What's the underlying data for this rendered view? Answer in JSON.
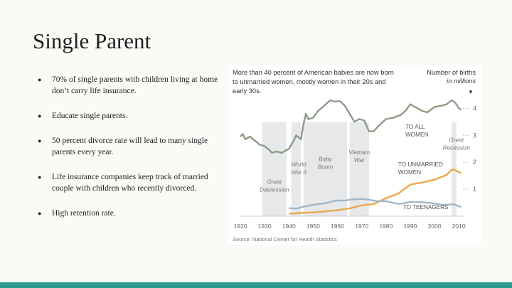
{
  "slide": {
    "title": "Single Parent"
  },
  "bullets": [
    "70% of single parents with children living at home don’t carry life insurance.",
    "Educate single parents.",
    "50 percent divorce rate will lead to many single parents every year.",
    "Life insurance companies keep track of married couple with children who recently divorced.",
    "High retention rate."
  ],
  "chart_data": {
    "type": "line",
    "title_lines": [
      "More than 40 percent of American babies are now born",
      "to unmarried women, mostly women in their 20s and",
      "early 30s."
    ],
    "ylabel_lines": [
      "Number of births",
      "in millions"
    ],
    "y_arrow": "▼",
    "xlim": [
      1920,
      2012
    ],
    "ylim": [
      0,
      4.8
    ],
    "x_ticks": [
      "1920",
      "1930",
      "1940",
      "1950",
      "1960",
      "1970",
      "1980",
      "1990",
      "2000",
      "2010"
    ],
    "y_ticks": [
      "4",
      "3",
      "2",
      "1"
    ],
    "series": [
      {
        "name": "TO ALL WOMEN",
        "label_lines": [
          "TO ALL",
          "WOMEN"
        ],
        "color": "#8e9b86",
        "x": [
          1920,
          1921,
          1922,
          1924,
          1926,
          1928,
          1930,
          1932,
          1933,
          1935,
          1937,
          1939,
          1940,
          1942,
          1943,
          1945,
          1946,
          1947,
          1948,
          1950,
          1952,
          1954,
          1957,
          1959,
          1961,
          1963,
          1965,
          1967,
          1969,
          1971,
          1973,
          1975,
          1977,
          1980,
          1983,
          1986,
          1988,
          1990,
          1992,
          1995,
          1997,
          2000,
          2003,
          2005,
          2007,
          2008,
          2009,
          2010,
          2011
        ],
        "values": [
          2.95,
          3.05,
          2.85,
          2.95,
          2.8,
          2.65,
          2.6,
          2.45,
          2.35,
          2.4,
          2.35,
          2.45,
          2.5,
          2.8,
          3.0,
          2.85,
          3.4,
          3.8,
          3.6,
          3.65,
          3.9,
          4.05,
          4.3,
          4.25,
          4.27,
          4.1,
          3.8,
          3.5,
          3.6,
          3.55,
          3.15,
          3.15,
          3.35,
          3.6,
          3.65,
          3.75,
          3.9,
          4.15,
          4.05,
          3.9,
          3.85,
          4.05,
          4.1,
          4.15,
          4.3,
          4.25,
          4.15,
          4.0,
          3.95
        ]
      },
      {
        "name": "TO UNMARRIED WOMEN",
        "label_lines": [
          "TO UNMARRIED",
          "WOMEN"
        ],
        "color": "#e9a94a",
        "x": [
          1940,
          1945,
          1950,
          1955,
          1960,
          1965,
          1970,
          1975,
          1980,
          1985,
          1990,
          1995,
          2000,
          2005,
          2007,
          2008,
          2009,
          2010,
          2011
        ],
        "values": [
          0.09,
          0.12,
          0.14,
          0.18,
          0.22,
          0.29,
          0.4,
          0.45,
          0.67,
          0.83,
          1.17,
          1.25,
          1.35,
          1.53,
          1.72,
          1.73,
          1.69,
          1.63,
          1.6
        ]
      },
      {
        "name": "TO TEENAGERS",
        "label_lines": [
          "TO TEENAGERS"
        ],
        "color": "#9fb8c8",
        "x": [
          1940,
          1943,
          1946,
          1950,
          1955,
          1958,
          1960,
          1963,
          1966,
          1970,
          1973,
          1976,
          1980,
          1984,
          1986,
          1990,
          1994,
          1997,
          2000,
          2003,
          2006,
          2008,
          2010,
          2011
        ],
        "values": [
          0.3,
          0.28,
          0.35,
          0.42,
          0.48,
          0.55,
          0.58,
          0.58,
          0.62,
          0.64,
          0.61,
          0.56,
          0.56,
          0.47,
          0.46,
          0.53,
          0.52,
          0.5,
          0.47,
          0.42,
          0.43,
          0.44,
          0.37,
          0.34
        ]
      }
    ],
    "annotations": [
      {
        "lines": [
          "Great",
          "Depression"
        ],
        "x_start": 1929,
        "x_end": 1939
      },
      {
        "lines": [
          "World",
          "War II"
        ],
        "x_start": 1941,
        "x_end": 1945
      },
      {
        "lines": [
          "Baby",
          "Boom"
        ],
        "x_start": 1946,
        "x_end": 1964
      },
      {
        "lines": [
          "Vietnam",
          "War"
        ],
        "x_start": 1965,
        "x_end": 1973
      },
      {
        "lines": [
          "Great",
          "Recession"
        ],
        "x_start": 2007,
        "x_end": 2009
      }
    ],
    "source": "Source: National Center for Health Statistics"
  },
  "colors": {
    "accent_bar": "#2a9d8f",
    "band": "#e6e8ea",
    "axis": "#cccccc",
    "text": "#666666",
    "title_text": "#333333"
  }
}
